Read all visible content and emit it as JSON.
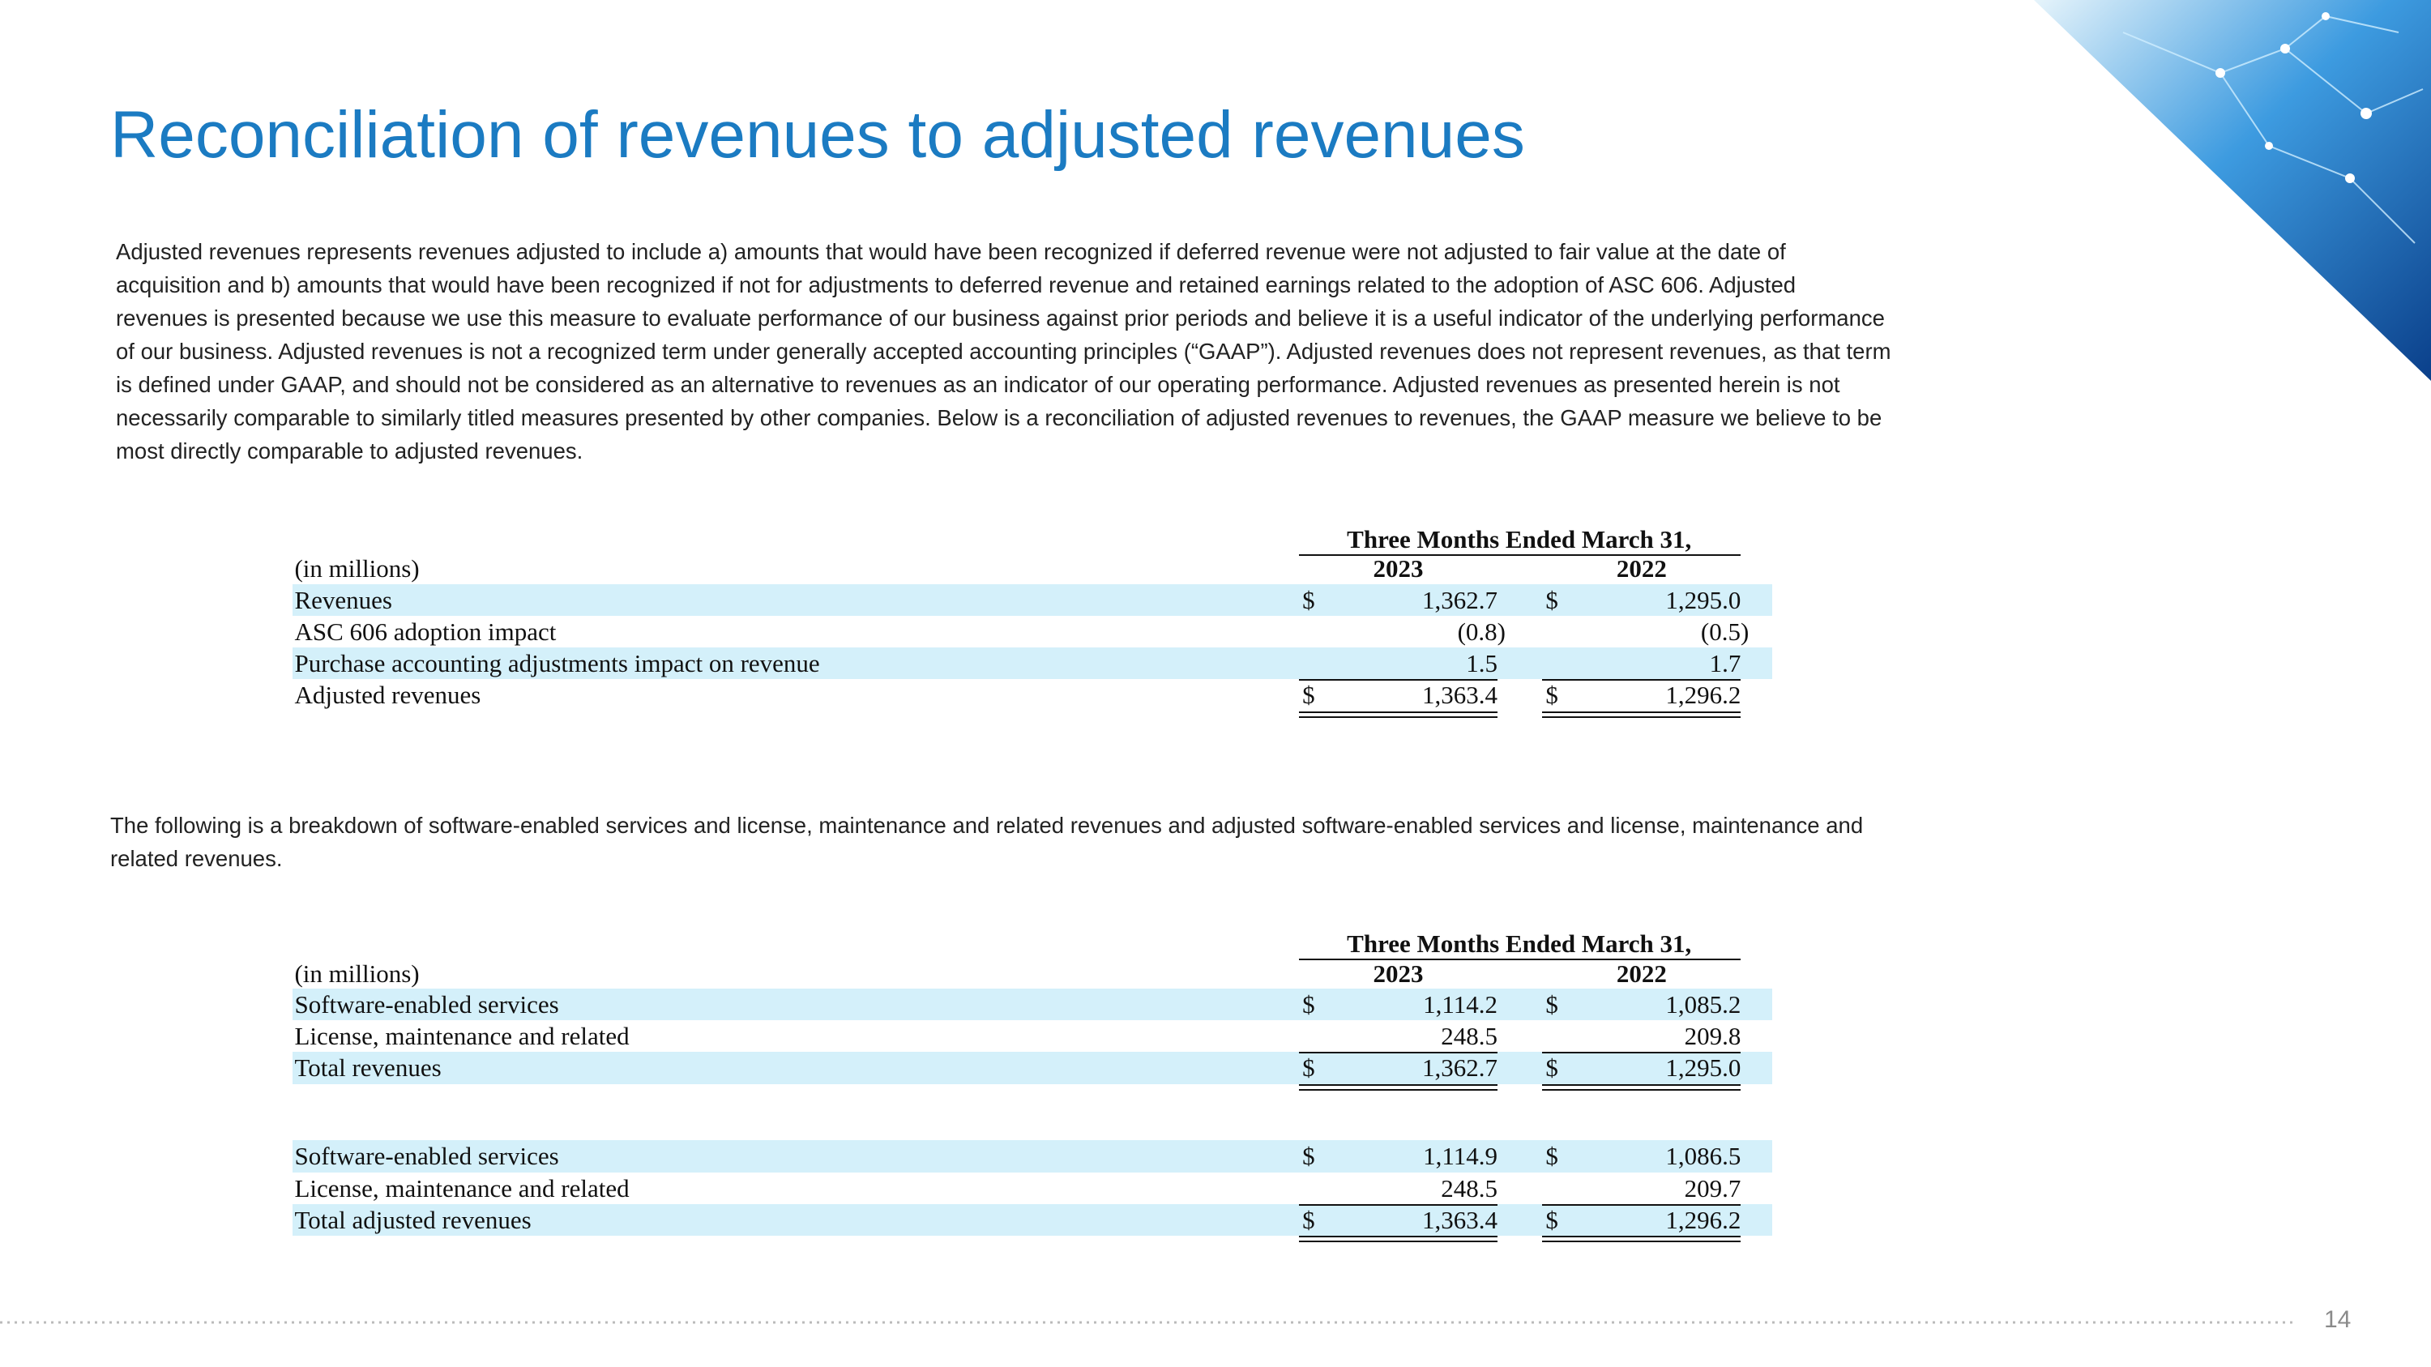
{
  "title": "Reconciliation of revenues to adjusted revenues",
  "intro_lines": [
    "Adjusted revenues represents revenues adjusted to include a) amounts that would have been recognized if deferred revenue were not adjusted to fair value at the date of",
    "acquisition and b) amounts that would have been recognized if not for adjustments to deferred revenue and retained earnings related to the adoption of ASC 606.  Adjusted",
    "revenues is presented because we use this measure to evaluate performance of our business against prior periods and believe it is a useful indicator of the underlying performance",
    "of our business.  Adjusted revenues is not a recognized term under generally accepted accounting principles (“GAAP”).  Adjusted revenues does not represent revenues, as that term",
    "is defined under GAAP, and should not be considered as an alternative to revenues as an indicator of our operating performance.  Adjusted revenues as presented herein is not",
    "necessarily comparable to similarly titled measures presented by other companies.  Below is a reconciliation of adjusted revenues to revenues, the GAAP measure we believe to be",
    "most directly comparable to adjusted revenues."
  ],
  "table1": {
    "period": "Three Months Ended March 31,",
    "unit": "(in millions)",
    "years": [
      "2023",
      "2022"
    ],
    "sections": [
      [
        {
          "label": "Revenues",
          "currency": "$",
          "values": [
            "1,362.7",
            "1,295.0"
          ]
        },
        {
          "label": "ASC 606 adoption impact",
          "values": [
            "(0.8)",
            "(0.5)"
          ]
        },
        {
          "label": "Purchase accounting adjustments impact on revenue",
          "values": [
            "1.5",
            "1.7"
          ]
        },
        {
          "label": "Adjusted revenues",
          "currency": "$",
          "values": [
            "1,363.4",
            "1,296.2"
          ]
        }
      ]
    ]
  },
  "breakdown_lines": [
    "The following is a breakdown of software-enabled services and license, maintenance and related revenues and adjusted software-enabled services and license, maintenance and",
    "related revenues."
  ],
  "table2": {
    "period": "Three Months Ended March 31,",
    "unit": "(in millions)",
    "years": [
      "2023",
      "2022"
    ],
    "sections": [
      [
        {
          "label": "Software-enabled services",
          "currency": "$",
          "values": [
            "1,114.2",
            "1,085.2"
          ]
        },
        {
          "label": "License, maintenance and related",
          "values": [
            "248.5",
            "209.8"
          ]
        },
        {
          "label": "Total revenues",
          "currency": "$",
          "values": [
            "1,362.7",
            "1,295.0"
          ]
        }
      ],
      [
        {
          "label": "Software-enabled services",
          "currency": "$",
          "values": [
            "1,114.9",
            "1,086.5"
          ]
        },
        {
          "label": "License, maintenance and related",
          "values": [
            "248.5",
            "209.7"
          ]
        },
        {
          "label": "Total adjusted revenues",
          "currency": "$",
          "values": [
            "1,363.4",
            "1,296.2"
          ]
        }
      ]
    ]
  },
  "page_number": "14"
}
